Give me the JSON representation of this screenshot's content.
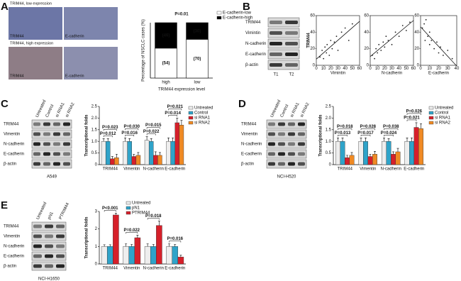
{
  "panels": {
    "A": {
      "letter": "A",
      "images": [
        {
          "caption": "TRIM44, low expression",
          "labels": [
            "TRIM44",
            "E-cadherin"
          ]
        },
        {
          "caption": "TRIM44, high expression",
          "labels": [
            "TRIM44",
            "E-cadherin"
          ]
        }
      ]
    },
    "B": {
      "letter": "B",
      "blot": {
        "rows": [
          "TRIM44",
          "Vimintin",
          "N-cadherin",
          "E-cadherin",
          "β-actin"
        ],
        "columns": [
          "T1",
          "T2"
        ]
      }
    },
    "C": {
      "letter": "C",
      "blot": {
        "rows": [
          "TRIM44",
          "Vimentin",
          "N-cadherin",
          "E-cadherin",
          "β-actin"
        ],
        "columns": [
          "Untreated",
          "Control",
          "si RNA1",
          "si RNA2"
        ],
        "cell_line": "A549"
      }
    },
    "D": {
      "letter": "D",
      "blot": {
        "rows": [
          "TRIM44",
          "Vimentin",
          "N-cadherin",
          "E-cadherin",
          "β-actin"
        ],
        "columns": [
          "Untreated",
          "Control",
          "si RNA1",
          "si RNA2"
        ],
        "cell_line": "NCI-H520"
      }
    },
    "E": {
      "letter": "E",
      "blot": {
        "rows": [
          "TRIM44",
          "Vimentin",
          "N-cadherin",
          "E-cadherin",
          "β-actin"
        ],
        "columns": [
          "Untreated",
          "pN1",
          "PTRIM44"
        ],
        "cell_line": "NCI-H1650"
      }
    }
  },
  "chart_data": [
    {
      "type": "stacked-bar",
      "title": "P=0.01",
      "y_label": "Percentage of NSCLC cases (%)",
      "x_label": "TRIM44 expression level",
      "categories": [
        "high",
        "low"
      ],
      "ylim": [
        0,
        100
      ],
      "series": [
        {
          "name": "E-cadherin-low",
          "color": "#ffffff",
          "values": [
            54,
            70
          ],
          "value_labels": [
            "(54)",
            "(70)"
          ]
        },
        {
          "name": "E-cadherin-high",
          "color": "#000000",
          "values": [
            46,
            30
          ],
          "value_labels": [
            "(46)",
            "(30)"
          ]
        }
      ]
    },
    {
      "type": "scatter",
      "x_label": "Vimintin",
      "y_label": "TRIM44",
      "color": "#222222",
      "x": [
        5,
        8,
        10,
        12,
        14,
        15,
        18,
        20,
        22,
        25,
        28,
        30,
        35,
        40,
        45,
        50
      ],
      "y": [
        10,
        18,
        8,
        22,
        15,
        25,
        12,
        30,
        20,
        28,
        35,
        18,
        40,
        45,
        30,
        50
      ],
      "xlim": [
        0,
        60
      ],
      "xticks": [
        0,
        10,
        20,
        30,
        40,
        50,
        60
      ],
      "ylim": [
        0,
        60
      ],
      "yticks": [
        0,
        20,
        40,
        60
      ]
    },
    {
      "type": "scatter",
      "x_label": "N-cadherin",
      "color": "#222222",
      "x": [
        3,
        6,
        8,
        10,
        12,
        15,
        18,
        20,
        22,
        25,
        30,
        35,
        40,
        45,
        50,
        55
      ],
      "y": [
        12,
        8,
        20,
        15,
        25,
        18,
        28,
        22,
        35,
        30,
        25,
        40,
        35,
        48,
        42,
        52
      ],
      "xlim": [
        0,
        60
      ],
      "xticks": [
        0,
        10,
        20,
        30,
        40,
        50,
        60
      ],
      "ylim": [
        0,
        60
      ],
      "yticks": [
        0,
        20,
        40,
        60
      ]
    },
    {
      "type": "scatter",
      "x_label": "E-cadherin",
      "color": "#222222",
      "x": [
        2,
        4,
        5,
        6,
        8,
        10,
        10,
        12,
        15,
        18,
        20,
        22,
        25,
        30,
        35
      ],
      "y": [
        45,
        50,
        30,
        55,
        35,
        40,
        25,
        30,
        20,
        28,
        15,
        22,
        12,
        18,
        8
      ],
      "xlim": [
        0,
        40
      ],
      "xticks": [
        0,
        10,
        20,
        30,
        40
      ],
      "ylim": [
        0,
        60
      ],
      "yticks": [
        0,
        20,
        40,
        60
      ]
    },
    {
      "type": "bar",
      "y_label": "Transcriptional folds",
      "categories": [
        "TRIM44",
        "Vimentin",
        "N-cadherin",
        "E-cadherin"
      ],
      "ylim": [
        0,
        2.5
      ],
      "yticks": [
        0,
        0.5,
        {
          "value": 1,
          "label": "1.0"
        },
        1.5,
        {
          "value": 2,
          "label": "2.0"
        },
        2.5
      ],
      "series": [
        {
          "name": "Untreated",
          "color": "#eeeeee",
          "values": [
            1.0,
            1.0,
            1.05,
            1.0
          ],
          "errors": [
            0.12,
            0.15,
            0.15,
            0.15
          ]
        },
        {
          "name": "Control",
          "color": "#2fa3c9",
          "values": [
            1.0,
            1.0,
            1.0,
            1.0
          ],
          "errors": [
            0.12,
            0.12,
            0.12,
            0.15
          ]
        },
        {
          "name": "si RNA1",
          "color": "#d6202a",
          "values": [
            0.25,
            0.35,
            0.4,
            1.8
          ],
          "errors": [
            0.1,
            0.1,
            0.15,
            0.2
          ]
        },
        {
          "name": "si RNA2",
          "color": "#f08a24",
          "values": [
            0.3,
            0.4,
            0.4,
            1.7
          ],
          "errors": [
            0.15,
            0.12,
            0.12,
            0.2
          ]
        }
      ],
      "annotations": [
        [
          "P=0.023",
          "P=0.012"
        ],
        [
          "P=0.030",
          "P=0.016"
        ],
        [
          "P=0.015",
          "P=0.022"
        ],
        [
          "P=0.021",
          "P=0.014"
        ]
      ]
    },
    {
      "type": "bar",
      "y_label": "Transcriptional folds",
      "categories": [
        "TRIM44",
        "Vimentin",
        "N-cadherin",
        "E-cadherin"
      ],
      "ylim": [
        0,
        2.5
      ],
      "yticks": [
        0,
        0.5,
        {
          "value": 1,
          "label": "1.0"
        },
        1.5,
        {
          "value": 2,
          "label": "2.0"
        },
        2.5
      ],
      "series": [
        {
          "name": "Untreated",
          "color": "#eeeeee",
          "values": [
            1.0,
            1.0,
            1.0,
            1.0
          ],
          "errors": [
            0.15,
            0.15,
            0.15,
            0.15
          ]
        },
        {
          "name": "Control",
          "color": "#2fa3c9",
          "values": [
            1.0,
            1.0,
            1.0,
            1.0
          ],
          "errors": [
            0.15,
            0.15,
            0.12,
            0.15
          ]
        },
        {
          "name": "si RNA1",
          "color": "#d6202a",
          "values": [
            0.3,
            0.35,
            0.45,
            1.6
          ],
          "errors": [
            0.1,
            0.1,
            0.1,
            0.2
          ]
        },
        {
          "name": "si RNA2",
          "color": "#f08a24",
          "values": [
            0.4,
            0.45,
            0.55,
            1.55
          ],
          "errors": [
            0.12,
            0.12,
            0.15,
            0.2
          ]
        }
      ],
      "annotations": [
        [
          "P=0.018",
          "P=0.013"
        ],
        [
          "P=0.028",
          "P=0.017"
        ],
        [
          "P=0.038",
          "P=0.024"
        ],
        [
          "P=0.026",
          "P=0.021"
        ]
      ]
    },
    {
      "type": "bar",
      "y_label": "Transcriptional folds",
      "categories": [
        "TRIM44",
        "Vimentin",
        "N-cadherin",
        "E-cadherin"
      ],
      "ylim": [
        0,
        3
      ],
      "yticks": [
        0,
        1,
        2,
        3
      ],
      "series": [
        {
          "name": "Untreated",
          "color": "#eeeeee",
          "values": [
            1.0,
            1.0,
            1.0,
            1.0
          ],
          "errors": [
            0.1,
            0.15,
            0.15,
            0.15
          ]
        },
        {
          "name": "pN1",
          "color": "#2fa3c9",
          "values": [
            1.0,
            1.0,
            1.0,
            1.0
          ],
          "errors": [
            0.1,
            0.12,
            0.12,
            0.12
          ]
        },
        {
          "name": "PTRIM44",
          "color": "#d6202a",
          "values": [
            2.8,
            1.5,
            2.2,
            0.4
          ],
          "errors": [
            0.1,
            0.15,
            0.25,
            0.1
          ]
        }
      ],
      "annotations": [
        [
          "P<0.001"
        ],
        [
          "P=0.022"
        ],
        [
          "P=0.018"
        ],
        [
          "P=0.016"
        ]
      ]
    }
  ]
}
